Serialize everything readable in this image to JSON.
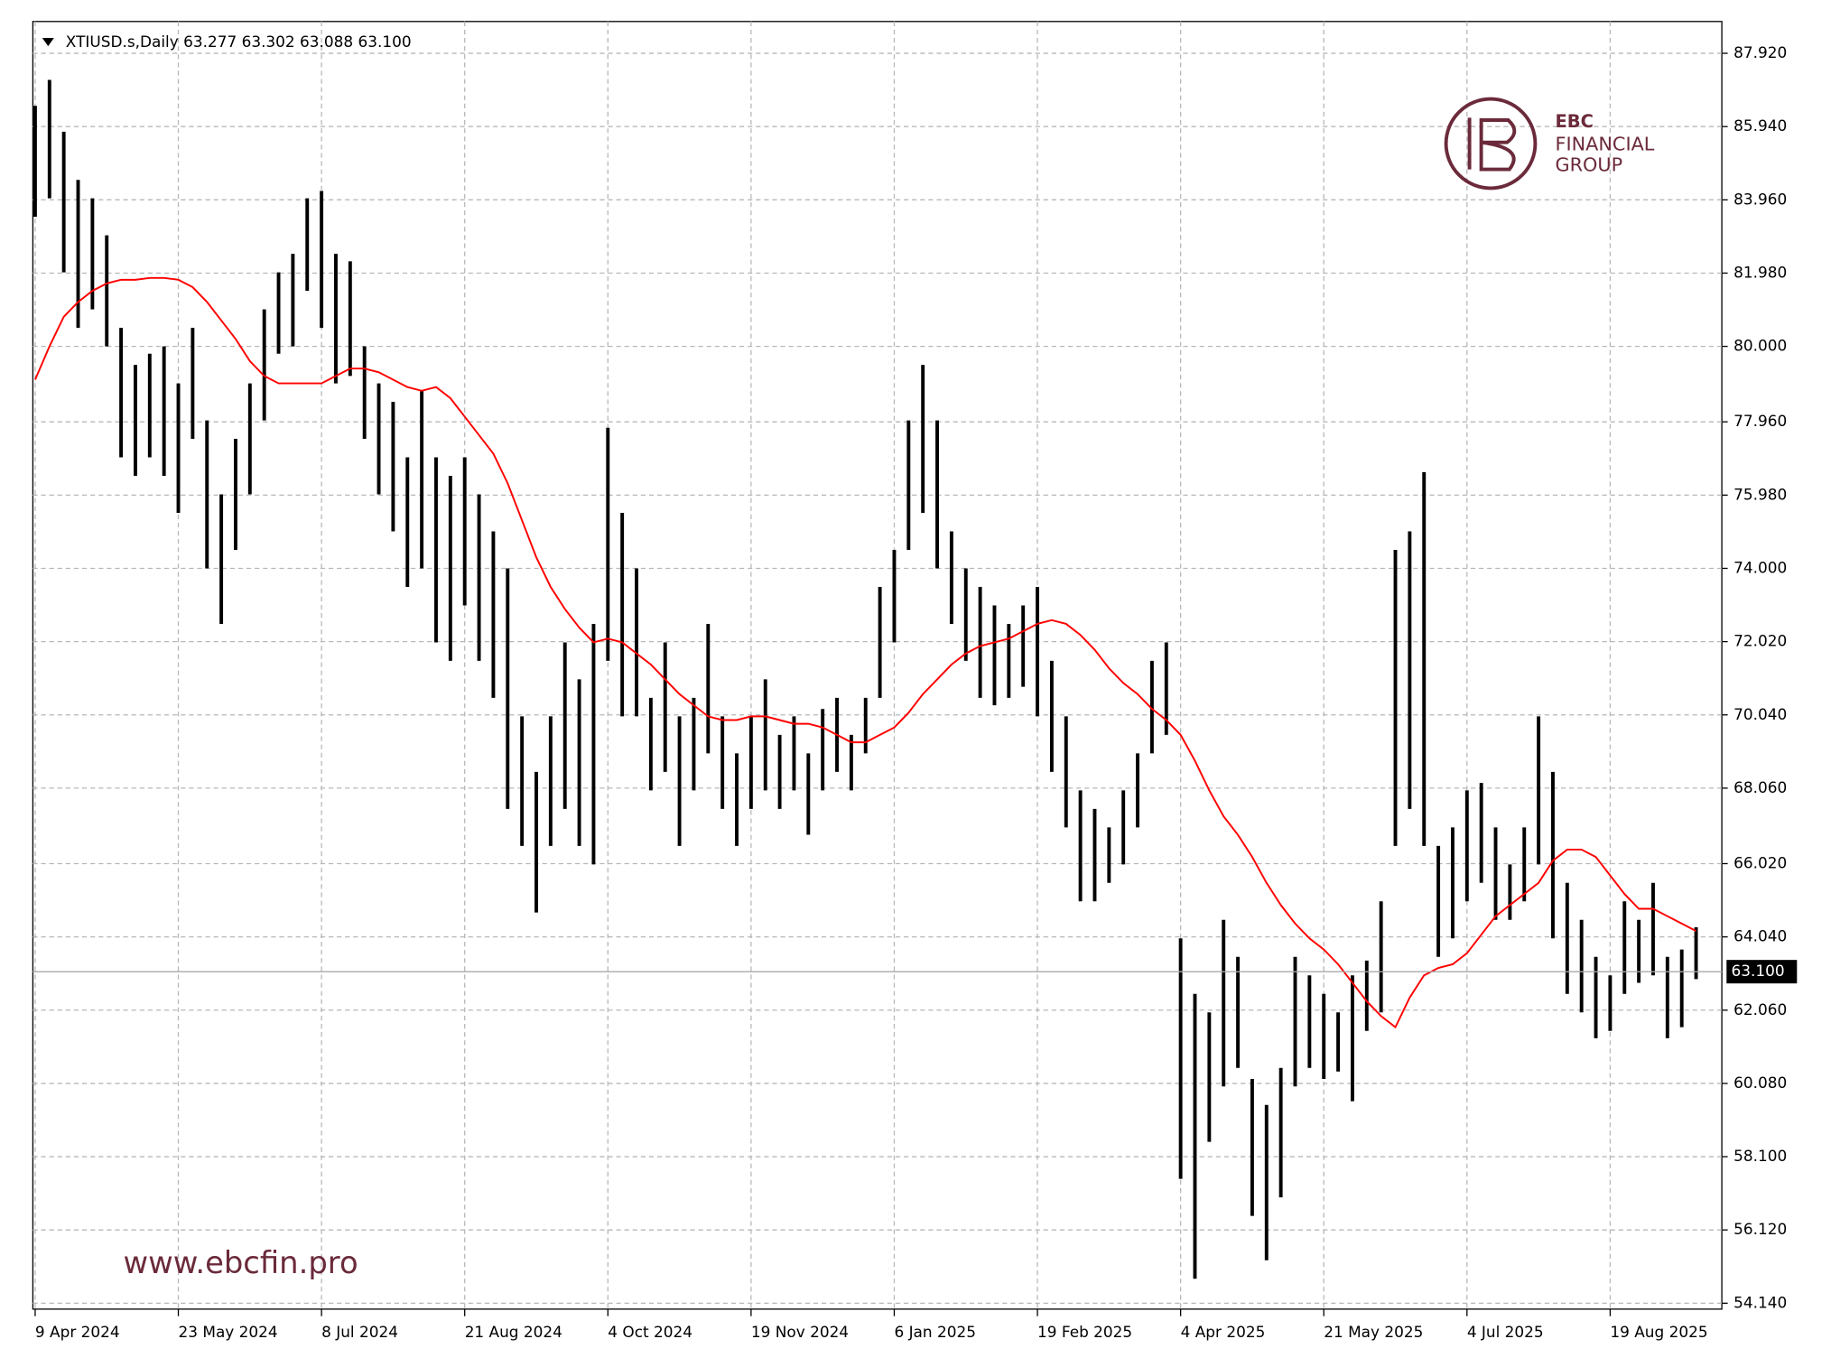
{
  "chart_data": {
    "type": "ohlc",
    "header": "XTIUSD.s,Daily  63.277 63.302 63.088 63.100",
    "watermark": {
      "brand": "EBC",
      "line1": "FINANCIAL",
      "line2": "GROUP",
      "url": "www.ebcfin.pro"
    },
    "bar_color": "#000000",
    "high": [
      86.5,
      87.2,
      85.8,
      84.5,
      84,
      83,
      80.5,
      79.5,
      79.8,
      80,
      79,
      80.5,
      78,
      76,
      77.5,
      79,
      81,
      82,
      82.5,
      84,
      84.2,
      82.5,
      82.3,
      80,
      79,
      78.5,
      77,
      78.8,
      77,
      76.5,
      77,
      76,
      75,
      74,
      70,
      68.5,
      70,
      72,
      71,
      72.5,
      77.8,
      75.5,
      74,
      70.5,
      72,
      70,
      70.5,
      72.5,
      70,
      69,
      70,
      71,
      69.5,
      70,
      69,
      70.2,
      70.5,
      69.5,
      70.5,
      73.5,
      74.5,
      78,
      79.5,
      78,
      75,
      74,
      73.5,
      73,
      72.5,
      73,
      73.5,
      71.5,
      70,
      68,
      67.5,
      67,
      68,
      69,
      71.5,
      72,
      64,
      62.5,
      62,
      64.5,
      63.5,
      60.2,
      59.5,
      60.5,
      63.5,
      63,
      62.5,
      62,
      63,
      63.4,
      65,
      74.5,
      75,
      76.6,
      66.5,
      67,
      68,
      68.2,
      67,
      66,
      67,
      70,
      68.5,
      65.5,
      64.5,
      63.5,
      63,
      65,
      64.5,
      65.5,
      63.5,
      63.7,
      64.3
    ],
    "low": [
      83.5,
      84,
      82,
      80.5,
      81,
      80,
      77,
      76.5,
      77,
      76.5,
      75.5,
      77.5,
      74,
      72.5,
      74.5,
      76,
      78,
      79.8,
      80,
      81.5,
      80.5,
      79,
      79.2,
      77.5,
      76,
      75,
      73.5,
      74,
      72,
      71.5,
      73,
      71.5,
      70.5,
      67.5,
      66.5,
      64.7,
      66.5,
      67.5,
      66.5,
      66,
      71.5,
      70,
      70,
      68,
      68.5,
      66.5,
      68,
      69,
      67.5,
      66.5,
      67.5,
      68,
      67.5,
      68,
      66.8,
      68,
      68.5,
      68,
      69,
      70.5,
      72,
      74.5,
      75.5,
      74,
      72.5,
      71.5,
      70.5,
      70.3,
      70.5,
      70.8,
      70,
      68.5,
      67,
      65,
      65,
      65.5,
      66,
      67,
      69,
      69.5,
      57.5,
      54.8,
      58.5,
      60,
      60.5,
      56.5,
      55.3,
      57,
      60,
      60.5,
      60.2,
      60.4,
      59.6,
      61.5,
      62,
      66.5,
      67.5,
      66.5,
      63.5,
      64,
      65,
      65.5,
      64.5,
      64.5,
      65,
      66,
      64,
      62.5,
      62,
      61.3,
      61.5,
      62.5,
      62.8,
      63,
      61.3,
      61.6,
      62.9
    ],
    "ma": {
      "color": "#ff0000",
      "values": [
        79.1,
        80,
        80.8,
        81.2,
        81.5,
        81.7,
        81.8,
        81.8,
        81.85,
        81.85,
        81.8,
        81.6,
        81.2,
        80.7,
        80.2,
        79.6,
        79.2,
        79,
        79,
        79,
        79,
        79.2,
        79.4,
        79.4,
        79.3,
        79.1,
        78.9,
        78.8,
        78.9,
        78.6,
        78.1,
        77.6,
        77.1,
        76.3,
        75.3,
        74.3,
        73.5,
        72.9,
        72.4,
        72,
        72.1,
        72,
        71.7,
        71.4,
        71,
        70.6,
        70.3,
        70,
        69.9,
        69.9,
        70,
        70,
        69.9,
        69.8,
        69.8,
        69.7,
        69.5,
        69.3,
        69.3,
        69.5,
        69.7,
        70.1,
        70.6,
        71,
        71.4,
        71.7,
        71.9,
        72,
        72.1,
        72.3,
        72.5,
        72.6,
        72.5,
        72.2,
        71.8,
        71.3,
        70.9,
        70.6,
        70.2,
        69.9,
        69.5,
        68.8,
        68,
        67.3,
        66.8,
        66.2,
        65.5,
        64.9,
        64.4,
        64,
        63.7,
        63.3,
        62.8,
        62.3,
        61.9,
        61.6,
        62.4,
        63,
        63.2,
        63.3,
        63.6,
        64.1,
        64.6,
        64.9,
        65.2,
        65.5,
        66.1,
        66.4,
        66.4,
        66.2,
        65.7,
        65.2,
        64.8,
        64.8,
        64.6,
        64.4,
        64.2
      ]
    },
    "last_price": {
      "value": 63.1,
      "label": "63.100"
    },
    "xlim": [
      -0.16,
      117.8
    ],
    "xticks": [
      {
        "value": 0,
        "label": "9 Apr 2024"
      },
      {
        "value": 10,
        "label": "23 May 2024"
      },
      {
        "value": 20,
        "label": "8 Jul 2024"
      },
      {
        "value": 30,
        "label": "21 Aug 2024"
      },
      {
        "value": 40,
        "label": "4 Oct 2024"
      },
      {
        "value": 50,
        "label": "19 Nov 2024"
      },
      {
        "value": 60,
        "label": "6 Jan 2025"
      },
      {
        "value": 70,
        "label": "19 Feb 2025"
      },
      {
        "value": 80,
        "label": "4 Apr 2025"
      },
      {
        "value": 90,
        "label": "21 May 2025"
      },
      {
        "value": 100,
        "label": "4 Jul 2025"
      },
      {
        "value": 110,
        "label": "19 Aug 2025"
      }
    ],
    "ylim": [
      53.98,
      88.78
    ],
    "yticks": [
      {
        "value": 54.14,
        "label": "54.140"
      },
      {
        "value": 56.12,
        "label": "56.120"
      },
      {
        "value": 58.1,
        "label": "58.100"
      },
      {
        "value": 60.08,
        "label": "60.080"
      },
      {
        "value": 62.06,
        "label": "62.060"
      },
      {
        "value": 64.04,
        "label": "64.040"
      },
      {
        "value": 66.02,
        "label": "66.020"
      },
      {
        "value": 68.06,
        "label": "68.060"
      },
      {
        "value": 70.04,
        "label": "70.040"
      },
      {
        "value": 72.02,
        "label": "72.020"
      },
      {
        "value": 74,
        "label": "74.000"
      },
      {
        "value": 75.98,
        "label": "75.980"
      },
      {
        "value": 77.96,
        "label": "77.960"
      },
      {
        "value": 80,
        "label": "80.000"
      },
      {
        "value": 81.98,
        "label": "81.980"
      },
      {
        "value": 83.96,
        "label": "83.960"
      },
      {
        "value": 85.94,
        "label": "85.940"
      },
      {
        "value": 87.92,
        "label": "87.920"
      }
    ],
    "grid": true
  }
}
